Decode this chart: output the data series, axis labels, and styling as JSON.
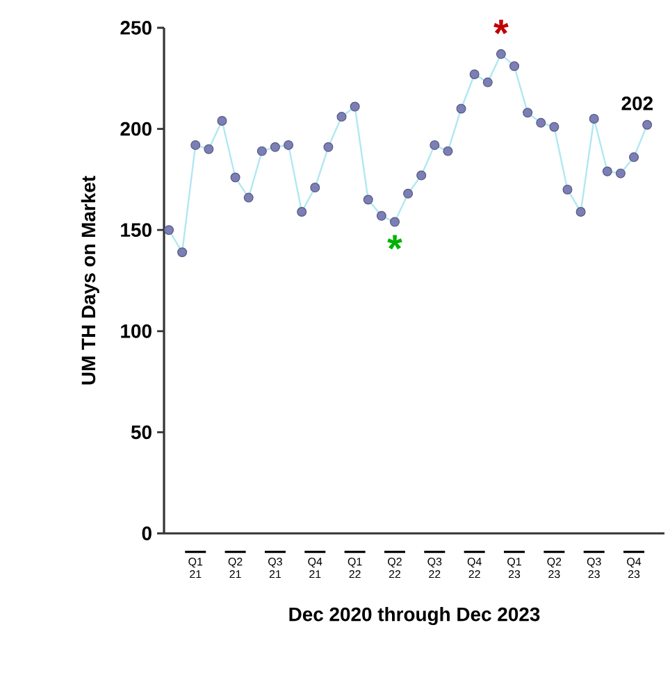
{
  "chart_data": {
    "type": "line",
    "xlabel": "Dec 2020 through Dec 2023",
    "ylabel": "UM TH Days on Market",
    "x": [
      "2020-12",
      "2021-01",
      "2021-02",
      "2021-03",
      "2021-04",
      "2021-05",
      "2021-06",
      "2021-07",
      "2021-08",
      "2021-09",
      "2021-10",
      "2021-11",
      "2021-12",
      "2022-01",
      "2022-02",
      "2022-03",
      "2022-04",
      "2022-05",
      "2022-06",
      "2022-07",
      "2022-08",
      "2022-09",
      "2022-10",
      "2022-11",
      "2022-12",
      "2023-01",
      "2023-02",
      "2023-03",
      "2023-04",
      "2023-05",
      "2023-06",
      "2023-07",
      "2023-08",
      "2023-09",
      "2023-10",
      "2023-11",
      "2023-12"
    ],
    "series": [
      {
        "color": "#7c7fb6",
        "values": [
          150,
          139,
          192,
          190,
          204,
          176,
          166,
          189,
          191,
          192,
          159,
          171,
          191,
          206,
          211,
          165,
          157,
          154,
          168,
          177,
          192,
          189,
          210,
          227,
          223,
          237,
          231,
          208,
          203,
          201,
          170,
          159,
          205,
          179,
          178,
          186,
          202
        ]
      }
    ],
    "marker": "circle",
    "line_style": "solid",
    "xlim": [
      "2020-11-20",
      "2024-01-10"
    ],
    "xticks": [
      {
        "value": "2021-02",
        "label": "Q1 21"
      },
      {
        "value": "2021-05",
        "label": "Q2 21"
      },
      {
        "value": "2021-08",
        "label": "Q3 21"
      },
      {
        "value": "2021-11",
        "label": "Q4 21"
      },
      {
        "value": "2022-02",
        "label": "Q1 22"
      },
      {
        "value": "2022-05",
        "label": "Q2 22"
      },
      {
        "value": "2022-08",
        "label": "Q3 22"
      },
      {
        "value": "2022-11",
        "label": "Q4 22"
      },
      {
        "value": "2023-02",
        "label": "Q1 23"
      },
      {
        "value": "2023-05",
        "label": "Q2 23"
      },
      {
        "value": "2023-08",
        "label": "Q3 23"
      },
      {
        "value": "2023-11",
        "label": "Q4 23"
      }
    ],
    "ylim": [
      0,
      250
    ],
    "yticks": [
      0,
      50,
      100,
      150,
      200,
      250
    ],
    "annotations": [
      {
        "text": "*",
        "x": "2023-01",
        "y": 237
      },
      {
        "text": "*",
        "x": "2022-05",
        "y": 154
      },
      {
        "text": "202",
        "x": "2023-12",
        "y": 202
      }
    ]
  }
}
